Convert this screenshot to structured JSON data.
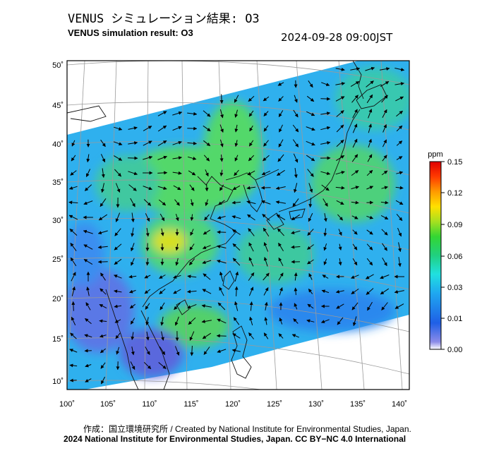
{
  "header": {
    "title_jp": "VENUS シミュレーション結果: O3",
    "title_en": "VENUS simulation result: O3",
    "timestamp": "2024-09-28 09:00JST"
  },
  "map": {
    "lat_labels": [
      "50˚",
      "45˚",
      "40˚",
      "35˚",
      "30˚",
      "25˚",
      "20˚",
      "15˚",
      "10˚"
    ],
    "lon_labels": [
      "100˚",
      "105˚",
      "110˚",
      "115˚",
      "120˚",
      "125˚",
      "130˚",
      "135˚",
      "140˚"
    ],
    "lat_range": [
      9,
      51
    ],
    "lon_range": [
      100,
      141
    ],
    "colors": {
      "frame": "#000000",
      "grid": "#9a9a9a"
    }
  },
  "colorbar": {
    "unit": "ppm",
    "tick_labels": [
      "0.15",
      "0.12",
      "0.09",
      "0.06",
      "0.03",
      "0.01",
      "0.00"
    ],
    "colors": [
      "#ffffff",
      "#8b8be8",
      "#1f5fe6",
      "#1fa8f0",
      "#20e0e0",
      "#20d080",
      "#33d633",
      "#a6e020",
      "#ffe000",
      "#ff9a00",
      "#ff3a00",
      "#e00000"
    ]
  },
  "footer": {
    "credit_jp_en": "作成：国立環境研究所 / Created by National Institute for Environmental Studies, Japan.",
    "copyright": "2024 National Institute for Environmental Studies, Japan. CC BY−NC 4.0 International"
  }
}
